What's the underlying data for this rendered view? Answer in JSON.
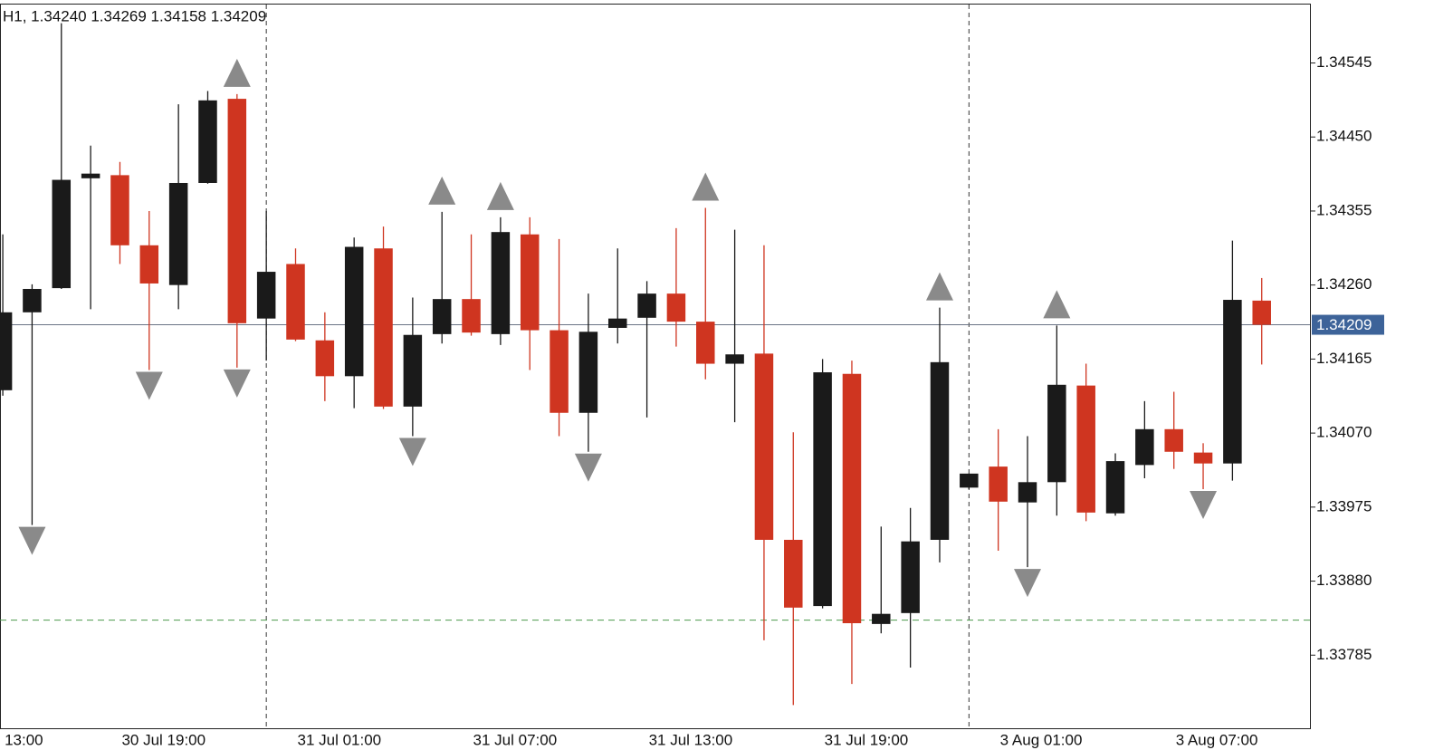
{
  "chart_data": {
    "type": "candlestick",
    "header": "H1, 1.34240 1.34269 1.34158 1.34209",
    "categories": [
      "13:00",
      null,
      null,
      null,
      "30 Jul 19:00",
      null,
      null,
      null,
      null,
      null,
      "31 Jul 01:00",
      null,
      null,
      null,
      null,
      null,
      "31 Jul 07:00",
      null,
      null,
      null,
      null,
      null,
      "31 Jul 13:00",
      null,
      null,
      null,
      null,
      null,
      "31 Jul 19:00",
      null,
      null,
      null,
      null,
      null,
      "3 Aug 01:00",
      null,
      null,
      null,
      null,
      null,
      "3 Aug 07:00",
      null,
      null,
      null
    ],
    "open": [
      1.34125,
      1.34225,
      1.34256,
      1.34397,
      1.34401,
      1.34311,
      1.3426,
      1.34391,
      1.34499,
      1.34217,
      1.34287,
      1.34189,
      1.34143,
      1.34307,
      1.34104,
      1.34197,
      1.34242,
      1.34197,
      1.34325,
      1.34202,
      1.34096,
      1.34205,
      1.34218,
      1.34249,
      1.34213,
      1.34159,
      1.34172,
      1.33933,
      1.33848,
      1.34146,
      1.33825,
      1.33839,
      1.33933,
      1.34,
      1.34027,
      1.33981,
      1.34007,
      1.34131,
      1.33967,
      1.34029,
      1.34075,
      1.34045,
      1.34031,
      1.3424
    ],
    "high": [
      1.34325,
      1.34261,
      1.34596,
      1.34439,
      1.34418,
      1.34355,
      1.34492,
      1.34509,
      1.34505,
      1.34355,
      1.34307,
      1.34225,
      1.34321,
      1.34335,
      1.34244,
      1.34354,
      1.34325,
      1.34347,
      1.34347,
      1.34319,
      1.34249,
      1.34307,
      1.34265,
      1.34333,
      1.34359,
      1.34331,
      1.34311,
      1.34071,
      1.34165,
      1.34163,
      1.3395,
      1.33974,
      1.34231,
      1.34018,
      1.34075,
      1.34066,
      1.34208,
      1.34159,
      1.34044,
      1.34111,
      1.34123,
      1.34057,
      1.34317,
      1.34269
    ],
    "low": [
      1.34118,
      1.33952,
      1.34255,
      1.34229,
      1.34287,
      1.34151,
      1.34229,
      1.3439,
      1.34154,
      1.34163,
      1.34188,
      1.34111,
      1.34102,
      1.34101,
      1.34066,
      1.34185,
      1.34195,
      1.34183,
      1.34151,
      1.34066,
      1.34046,
      1.34185,
      1.3409,
      1.34181,
      1.34139,
      1.34084,
      1.33804,
      1.33721,
      1.33845,
      1.33748,
      1.33813,
      1.33769,
      1.33904,
      1.33998,
      1.33919,
      1.33898,
      1.33964,
      1.33957,
      1.33964,
      1.34012,
      1.34024,
      1.33998,
      1.34009,
      1.34158
    ],
    "close": [
      1.34225,
      1.34255,
      1.34395,
      1.34403,
      1.34311,
      1.34262,
      1.34391,
      1.34497,
      1.34211,
      1.34277,
      1.3419,
      1.34143,
      1.34309,
      1.34104,
      1.34196,
      1.34242,
      1.34199,
      1.34328,
      1.34202,
      1.34096,
      1.342,
      1.34217,
      1.34249,
      1.34213,
      1.34159,
      1.34171,
      1.33933,
      1.33846,
      1.34148,
      1.33826,
      1.33838,
      1.33931,
      1.34161,
      1.34018,
      1.33982,
      1.34007,
      1.34132,
      1.33968,
      1.34034,
      1.34075,
      1.34046,
      1.34031,
      1.34241,
      1.34209
    ],
    "up_color": "#1a1a1a",
    "down_color": "#cf3520",
    "fractals_up": [
      null,
      null,
      null,
      null,
      null,
      null,
      null,
      null,
      1.34505,
      null,
      null,
      null,
      null,
      null,
      null,
      1.34354,
      null,
      1.34347,
      null,
      null,
      null,
      null,
      null,
      null,
      1.34359,
      null,
      null,
      null,
      null,
      null,
      null,
      null,
      1.34231,
      null,
      null,
      null,
      1.34208,
      null,
      null,
      null,
      null,
      null,
      null,
      null
    ],
    "fractals_down": [
      null,
      1.33952,
      null,
      null,
      null,
      1.34151,
      null,
      null,
      1.34154,
      null,
      null,
      null,
      null,
      null,
      1.34066,
      null,
      null,
      null,
      null,
      null,
      1.34046,
      null,
      null,
      null,
      null,
      null,
      null,
      null,
      null,
      null,
      null,
      null,
      null,
      null,
      null,
      1.33898,
      null,
      null,
      null,
      null,
      null,
      1.33998,
      null,
      null
    ],
    "fractal_color": "#8a8a8a",
    "day_separators": [
      9,
      33
    ],
    "last_price": 1.34209,
    "last_price_color": "#3d6399",
    "level": 1.3383,
    "level_color": "#4c9a4c",
    "ylim": [
      1.3369,
      1.3462
    ],
    "yticks": [
      1.34545,
      {
        "value": 1.3445,
        "label": "1.34450"
      },
      1.34355,
      {
        "value": 1.3426,
        "label": "1.34260"
      },
      1.34165,
      {
        "value": 1.3407,
        "label": "1.34070"
      },
      1.33975,
      {
        "value": 1.3388,
        "label": "1.33880"
      },
      1.33785
    ]
  }
}
